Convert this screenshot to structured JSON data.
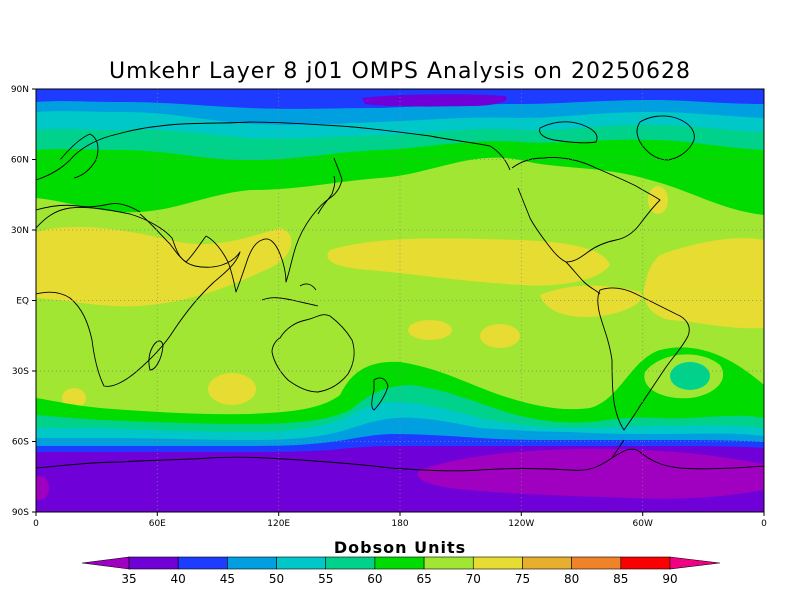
{
  "title": "Umkehr Layer 8 j01 OMPS Analysis on 20250628",
  "lat_ticks": [
    "90N",
    "60N",
    "30N",
    "EQ",
    "30S",
    "60S",
    "90S"
  ],
  "lon_ticks": [
    "0",
    "60E",
    "120E",
    "180",
    "120W",
    "60W",
    "0"
  ],
  "colorbar": {
    "title": "Dobson Units",
    "tick_labels": [
      "35",
      "40",
      "45",
      "50",
      "55",
      "60",
      "65",
      "70",
      "75",
      "80",
      "85",
      "90"
    ],
    "colors": [
      "#a000c0",
      "#7000d8",
      "#1e3cff",
      "#00a0e0",
      "#00c8c8",
      "#00d28c",
      "#00dc00",
      "#a0e632",
      "#e6dc32",
      "#e6af2d",
      "#f08228",
      "#fa0000",
      "#f00082"
    ]
  },
  "map_colors": {
    "coast": "#000000",
    "grid": "#888888"
  }
}
